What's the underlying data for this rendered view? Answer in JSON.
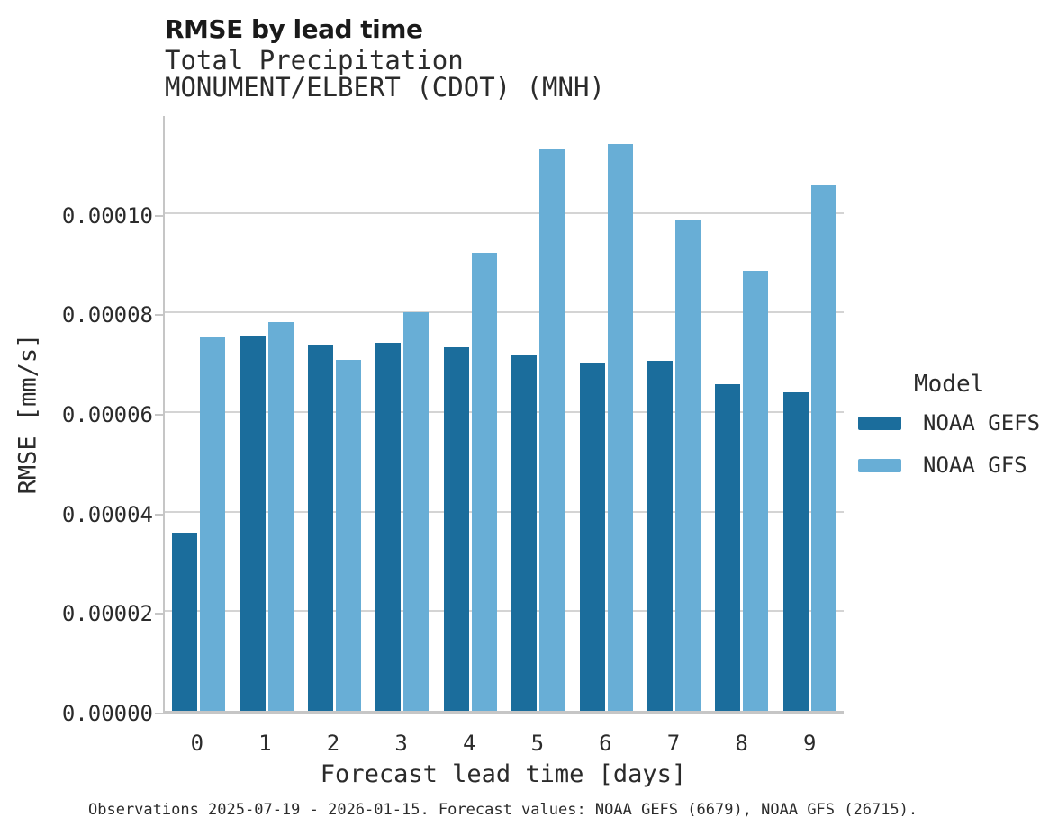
{
  "title": "RMSE by lead time",
  "subtitle": [
    "Total Precipitation",
    "MONUMENT/ELBERT (CDOT) (MNH)"
  ],
  "caption": "Observations 2025-07-19 - 2026-01-15. Forecast values: NOAA GEFS (6679), NOAA GFS (26715).",
  "colors": {
    "gefs_dark_blue": "#1b6d9c",
    "gfs_light_blue": "#68aed6",
    "gridline_gray": "#d4d4d4",
    "axis_gray": "#c6c6c6"
  },
  "legend": {
    "title": "Model",
    "items": [
      {
        "label": "NOAA GEFS",
        "color": "#1b6d9c"
      },
      {
        "label": "NOAA GFS",
        "color": "#68aed6"
      }
    ]
  },
  "chart_data": {
    "type": "bar",
    "title": "RMSE by lead time",
    "subtitle_lines": [
      "Total Precipitation",
      "MONUMENT/ELBERT (CDOT) (MNH)"
    ],
    "categories": [
      "0",
      "1",
      "2",
      "3",
      "4",
      "5",
      "6",
      "7",
      "8",
      "9"
    ],
    "series": [
      {
        "name": "NOAA GEFS",
        "color": "#1b6d9c",
        "values": [
          3.57e-05,
          7.53e-05,
          7.35e-05,
          7.4e-05,
          7.31e-05,
          7.13e-05,
          6.99e-05,
          7.03e-05,
          6.56e-05,
          6.39e-05
        ]
      },
      {
        "name": "NOAA GFS",
        "color": "#68aed6",
        "values": [
          7.51e-05,
          7.81e-05,
          7.04e-05,
          8e-05,
          9.2e-05,
          0.0001128,
          0.0001138,
          9.87e-05,
          8.83e-05,
          0.0001055
        ]
      }
    ],
    "xlabel": "Forecast lead time [days]",
    "ylabel": "RMSE [mm/s]",
    "ylim": [
      0,
      0.00012
    ],
    "yticks": [
      0,
      2e-05,
      4e-05,
      6e-05,
      8e-05,
      0.0001
    ],
    "ytick_labels": [
      "0.00000",
      "0.00002",
      "0.00004",
      "0.00006",
      "0.00008",
      "0.00010"
    ],
    "grid": true,
    "legend_position": "right",
    "legend_title": "Model"
  }
}
